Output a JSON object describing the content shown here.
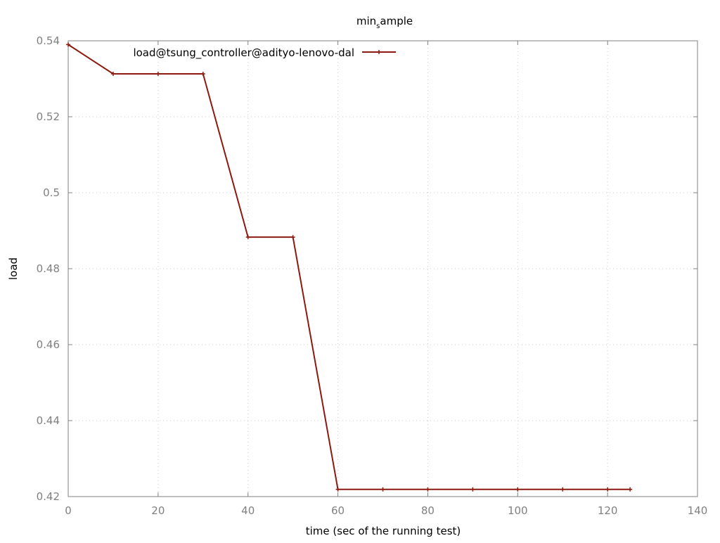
{
  "chart_data": {
    "type": "line",
    "title_main": "min",
    "title_sub": "s",
    "title_rest": "ample",
    "xlabel": "time (sec of the running test)",
    "ylabel": "load",
    "xlim": [
      0,
      140
    ],
    "ylim": [
      0.42,
      0.54
    ],
    "x_ticks": [
      0,
      20,
      40,
      60,
      80,
      100,
      120,
      140
    ],
    "y_ticks": [
      0.42,
      0.44,
      0.46,
      0.48,
      0.5,
      0.52,
      0.54
    ],
    "y_tick_labels": [
      "0.42",
      "0.44",
      "0.46",
      "0.48",
      "0.5",
      "0.52",
      "0.54"
    ],
    "grid": true,
    "legend_position": "top-left",
    "series": [
      {
        "name": "load@tsung_controller@adityo-lenovo-dal",
        "color": "#8b1a10",
        "marker": "plus",
        "x": [
          0,
          10,
          20,
          30,
          40,
          50,
          60,
          70,
          80,
          90,
          100,
          110,
          120,
          125
        ],
        "y": [
          0.539,
          0.5313,
          0.5313,
          0.5313,
          0.4883,
          0.4883,
          0.4219,
          0.4219,
          0.4219,
          0.4219,
          0.4219,
          0.4219,
          0.4219,
          0.4219
        ]
      }
    ]
  }
}
